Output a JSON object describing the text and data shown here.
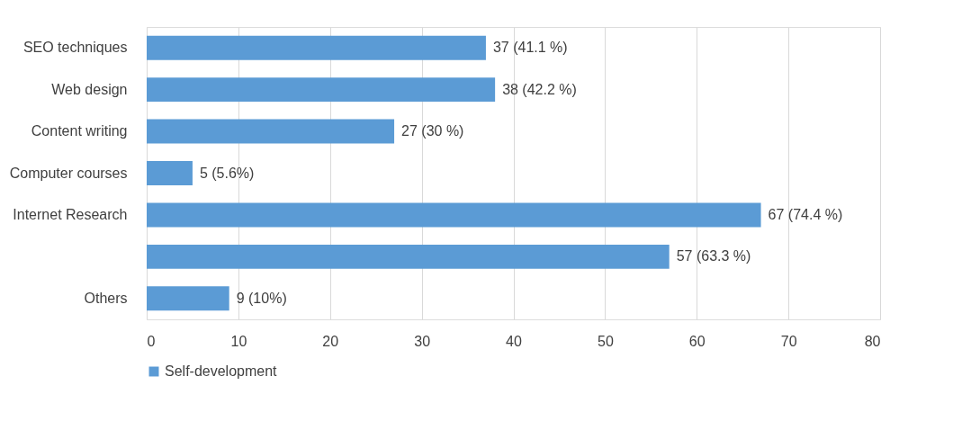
{
  "chart_data": {
    "type": "bar",
    "orientation": "horizontal",
    "categories": [
      "SEO techniques",
      "Web design",
      "Content writing",
      "Computer courses",
      "Internet Research",
      null,
      "Others"
    ],
    "series": [
      {
        "name": "Self-development",
        "color": "#5b9bd5",
        "values": [
          37,
          38,
          27,
          5,
          67,
          57,
          9
        ],
        "value_labels": [
          "37 (41.1 %)",
          "38 (42.2 %)",
          "27 (30 %)",
          "5 (5.6%)",
          "67 (74.4 %)",
          "57 (63.3 %)",
          "9 (10%)"
        ]
      }
    ],
    "xlim": [
      0,
      80
    ],
    "xticks": [
      0,
      10,
      20,
      30,
      40,
      50,
      60,
      70,
      80
    ],
    "grid": "x",
    "legend": "bottom"
  }
}
